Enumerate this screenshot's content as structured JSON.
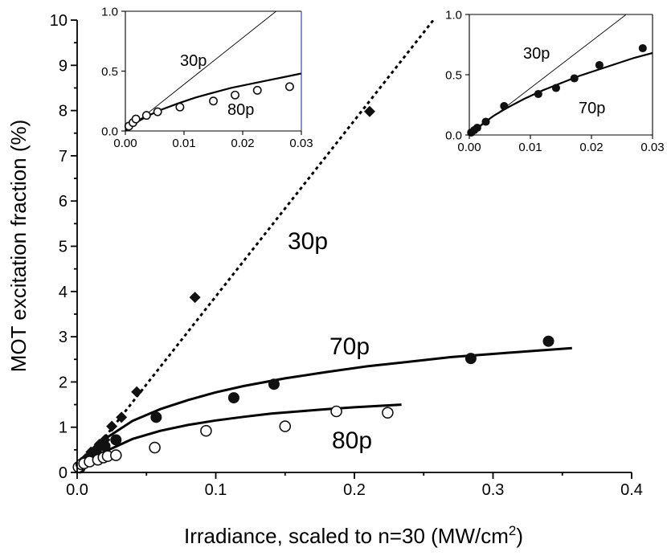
{
  "chart_data": [
    {
      "id": "main",
      "type": "scatter",
      "title": "",
      "xlabel": "Irradiance, scaled to n=30 (MW/cm",
      "xlabel_sup": "2",
      "xlabel_end": ")",
      "ylabel": "MOT excitation fraction (%)",
      "xlim": [
        0,
        0.4
      ],
      "ylim": [
        0,
        10
      ],
      "xticks": [
        0,
        0.1,
        0.2,
        0.3,
        0.4
      ],
      "xtick_labels": [
        "0.0",
        "0.1",
        "0.2",
        "0.3",
        "0.4"
      ],
      "yticks": [
        0,
        1,
        2,
        3,
        4,
        5,
        6,
        7,
        8,
        9,
        10
      ],
      "ytick_labels": [
        "0",
        "1",
        "2",
        "3",
        "4",
        "5",
        "6",
        "7",
        "8",
        "9",
        "10"
      ],
      "series": [
        {
          "name": "30p",
          "marker": "diamond",
          "x": [
            0.004,
            0.006,
            0.01,
            0.013,
            0.016,
            0.02,
            0.025,
            0.032,
            0.043,
            0.085,
            0.211
          ],
          "y": [
            0.22,
            0.3,
            0.45,
            0.5,
            0.62,
            0.72,
            1.02,
            1.22,
            1.78,
            3.87,
            7.98
          ],
          "fit": {
            "style": "dotted",
            "x": [
              0,
              0.257
            ],
            "y": [
              0,
              10.0
            ]
          }
        },
        {
          "name": "70p",
          "marker": "filled-circle",
          "x": [
            0.002,
            0.005,
            0.01,
            0.014,
            0.02,
            0.028,
            0.057,
            0.113,
            0.142,
            0.284,
            0.34
          ],
          "y": [
            0.1,
            0.23,
            0.36,
            0.42,
            0.58,
            0.72,
            1.22,
            1.65,
            1.95,
            2.52,
            2.9
          ],
          "fit": {
            "style": "solid",
            "x": [
              0.0,
              0.01,
              0.02,
              0.04,
              0.06,
              0.08,
              0.1,
              0.12,
              0.15,
              0.18,
              0.21,
              0.24,
              0.27,
              0.3,
              0.33,
              0.357
            ],
            "y": [
              0.0,
              0.42,
              0.74,
              1.14,
              1.4,
              1.6,
              1.77,
              1.91,
              2.08,
              2.22,
              2.35,
              2.45,
              2.55,
              2.62,
              2.69,
              2.75
            ]
          }
        },
        {
          "name": "80p",
          "marker": "open-circle",
          "x": [
            0.001,
            0.003,
            0.005,
            0.009,
            0.015,
            0.019,
            0.022,
            0.028,
            0.056,
            0.093,
            0.15,
            0.187,
            0.224
          ],
          "y": [
            0.12,
            0.18,
            0.2,
            0.24,
            0.28,
            0.33,
            0.36,
            0.38,
            0.55,
            0.92,
            1.02,
            1.35,
            1.32
          ],
          "fit": {
            "style": "solid",
            "x": [
              0.0,
              0.01,
              0.02,
              0.04,
              0.06,
              0.08,
              0.1,
              0.12,
              0.14,
              0.16,
              0.18,
              0.2,
              0.234
            ],
            "y": [
              0.0,
              0.27,
              0.46,
              0.74,
              0.92,
              1.05,
              1.15,
              1.23,
              1.3,
              1.35,
              1.4,
              1.44,
              1.5
            ]
          }
        }
      ],
      "annotations": [
        "30p",
        "70p",
        "80p"
      ]
    },
    {
      "id": "inset-left",
      "type": "scatter",
      "xlim": [
        0,
        0.03
      ],
      "ylim": [
        0,
        1.0
      ],
      "xtick_labels": [
        "0.00",
        "0.01",
        "0.02",
        "0.03"
      ],
      "ytick_labels": [
        "0.0",
        "0.5",
        "1.0"
      ],
      "series": [
        {
          "name": "30p",
          "marker": "none",
          "fit": {
            "style": "thin",
            "x": [
              0,
              0.0257
            ],
            "y": [
              0,
              1.0
            ]
          }
        },
        {
          "name": "80p",
          "marker": "open-circle",
          "x": [
            0.0006,
            0.0013,
            0.0018,
            0.0036,
            0.0055,
            0.0093,
            0.015,
            0.0187,
            0.0225,
            0.028
          ],
          "y": [
            0.04,
            0.07,
            0.1,
            0.13,
            0.16,
            0.2,
            0.25,
            0.3,
            0.34,
            0.37
          ],
          "fit": {
            "style": "solid",
            "x": [
              0.0,
              0.002,
              0.004,
              0.006,
              0.009,
              0.012,
              0.015,
              0.018,
              0.021,
              0.024,
              0.027,
              0.03
            ],
            "y": [
              0.0,
              0.075,
              0.13,
              0.175,
              0.23,
              0.28,
              0.32,
              0.36,
              0.39,
              0.42,
              0.45,
              0.48
            ]
          }
        }
      ],
      "annotations": [
        "30p",
        "80p"
      ]
    },
    {
      "id": "inset-right",
      "type": "scatter",
      "xlim": [
        0,
        0.03
      ],
      "ylim": [
        0,
        1.0
      ],
      "xtick_labels": [
        "0.00",
        "0.01",
        "0.02",
        "0.03"
      ],
      "ytick_labels": [
        "0.0",
        "0.5",
        "1.0"
      ],
      "series": [
        {
          "name": "30p",
          "marker": "none",
          "fit": {
            "style": "thin",
            "x": [
              0,
              0.0257
            ],
            "y": [
              0,
              1.0
            ]
          }
        },
        {
          "name": "70p",
          "marker": "filled-circle",
          "x": [
            0.0003,
            0.0008,
            0.0013,
            0.0027,
            0.0057,
            0.0113,
            0.0142,
            0.0172,
            0.0213,
            0.0284
          ],
          "y": [
            0.02,
            0.04,
            0.06,
            0.11,
            0.24,
            0.34,
            0.39,
            0.47,
            0.58,
            0.72
          ],
          "fit": {
            "style": "solid",
            "x": [
              0.0,
              0.002,
              0.004,
              0.006,
              0.009,
              0.012,
              0.015,
              0.018,
              0.021,
              0.024,
              0.027,
              0.03
            ],
            "y": [
              0.0,
              0.085,
              0.16,
              0.22,
              0.3,
              0.37,
              0.43,
              0.49,
              0.54,
              0.59,
              0.64,
              0.68
            ]
          }
        }
      ],
      "annotations": [
        "30p",
        "70p"
      ]
    }
  ]
}
